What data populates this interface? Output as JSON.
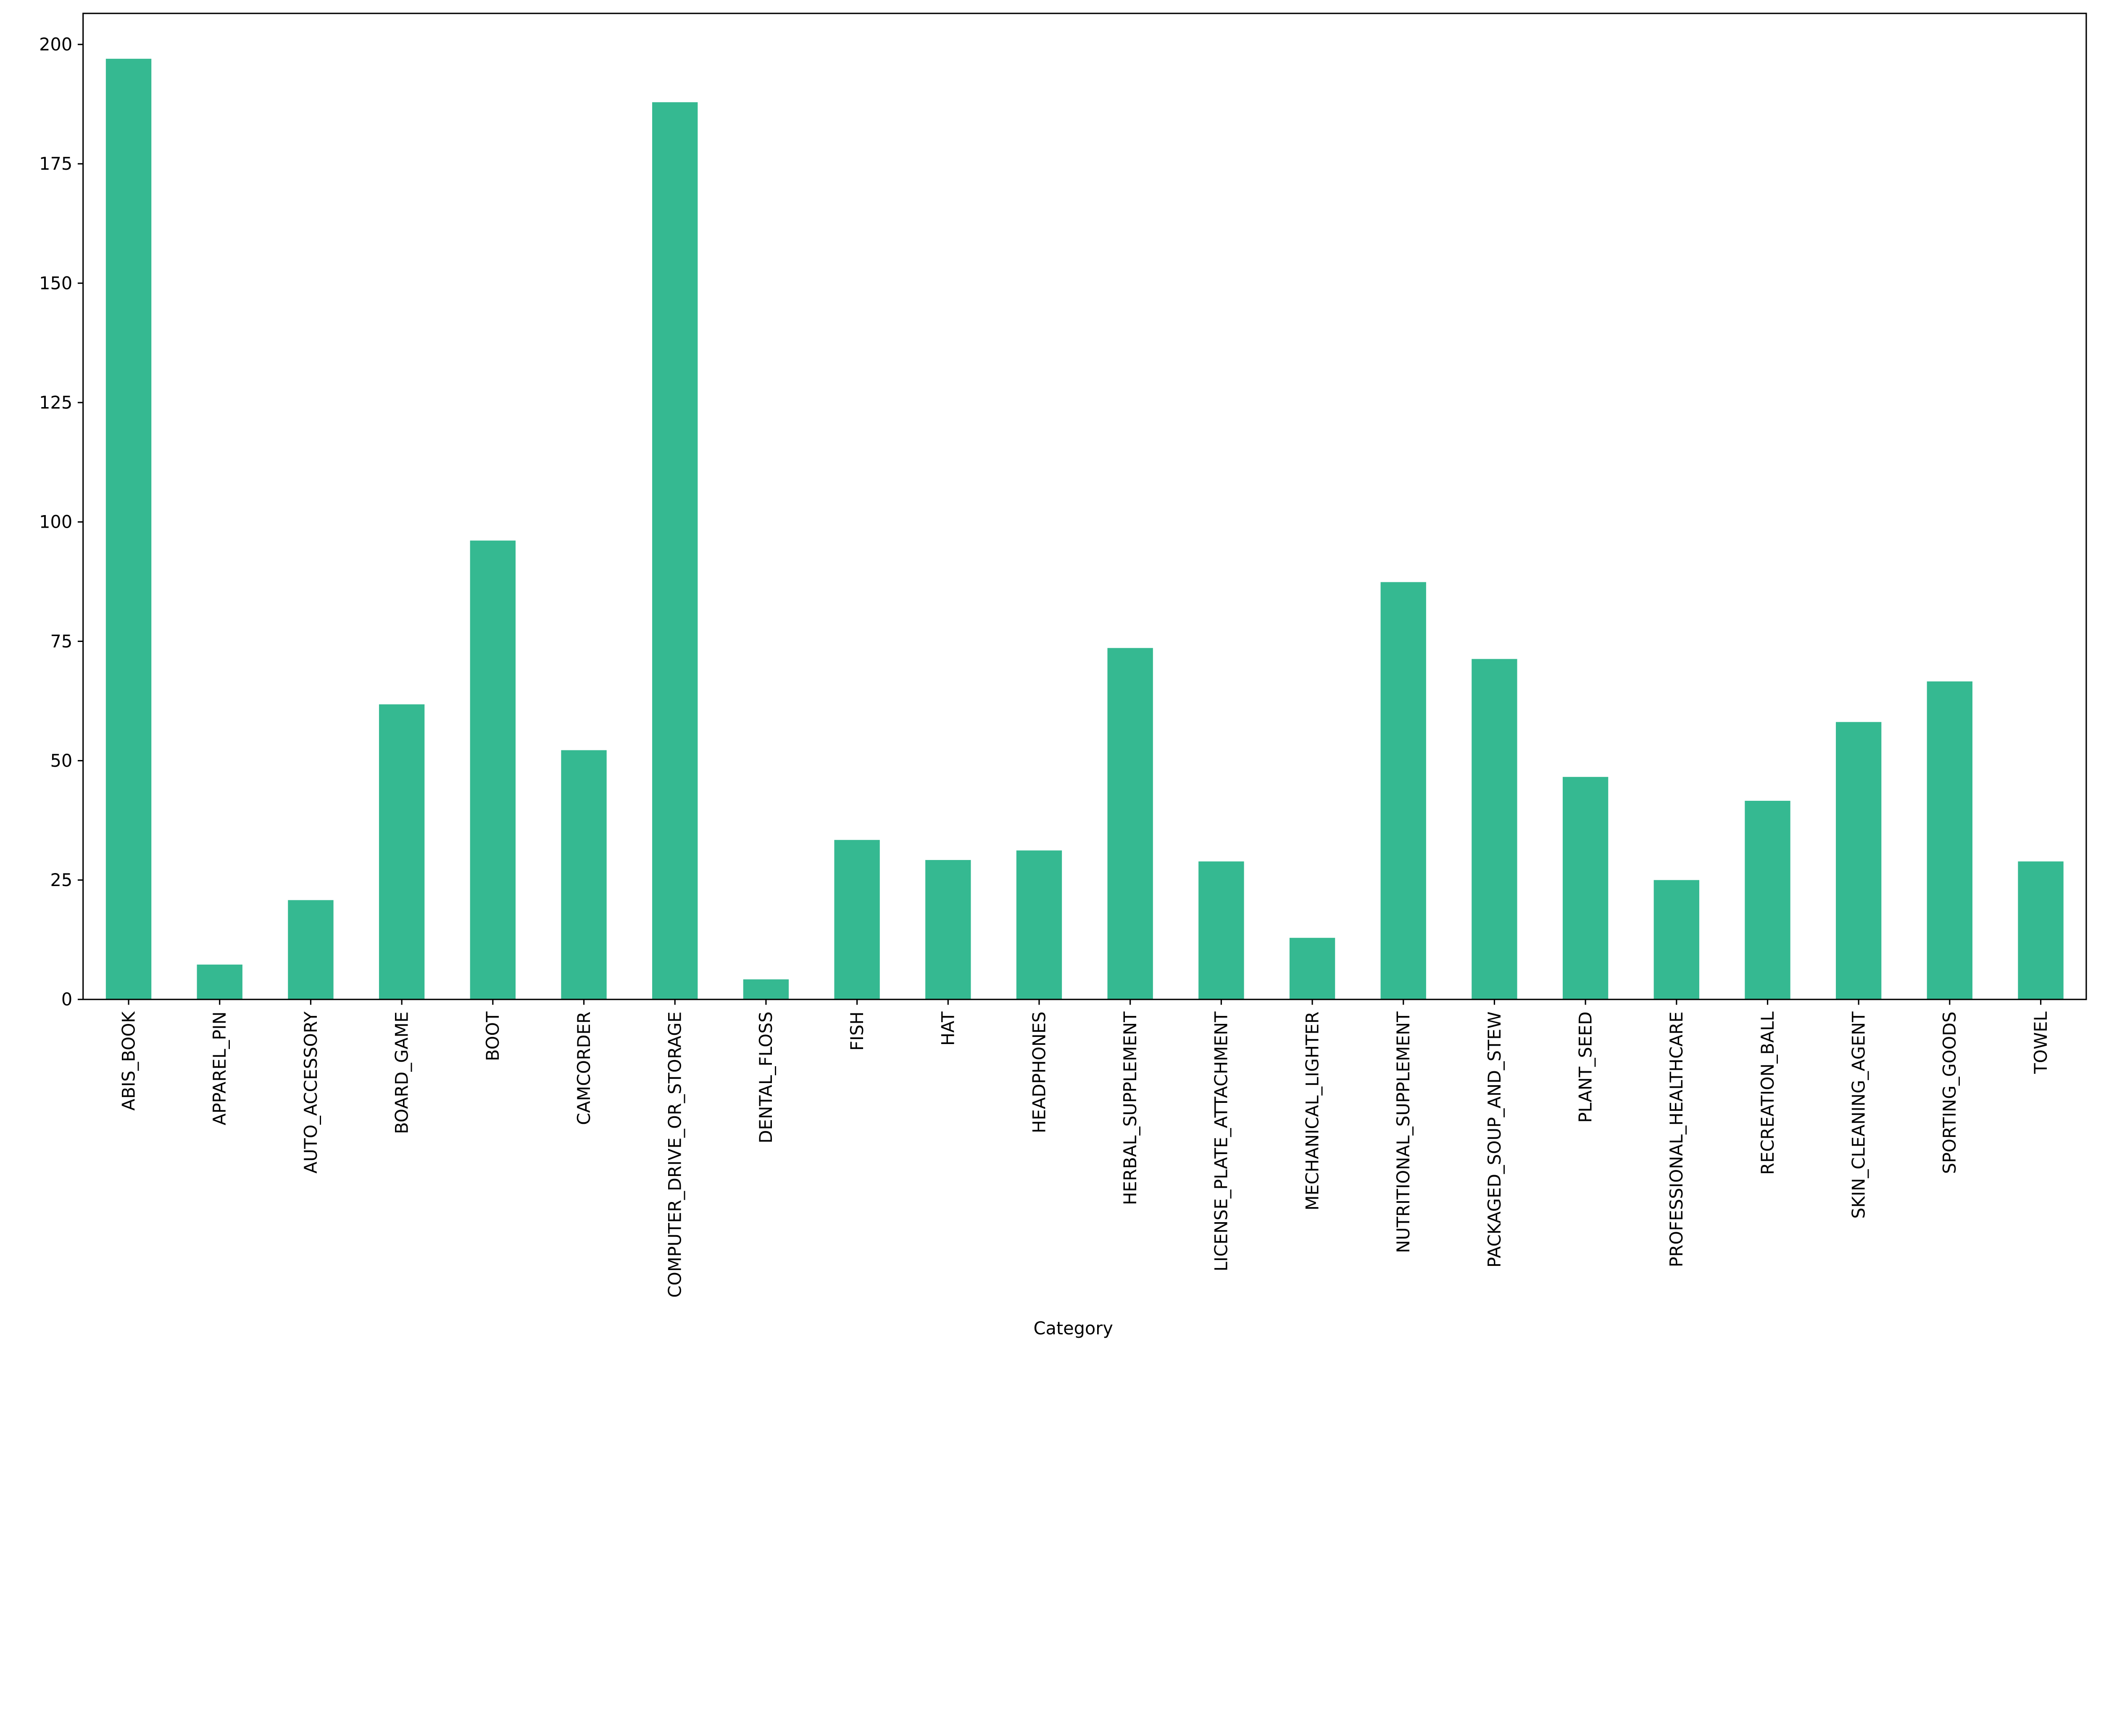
{
  "chart_data": {
    "type": "bar",
    "title": "",
    "xlabel": "Category",
    "ylabel": "",
    "ylim": [
      0,
      206.5
    ],
    "yticks": [
      0,
      25,
      50,
      75,
      100,
      125,
      150,
      175,
      200
    ],
    "grid": false,
    "bar_color": "#35b991",
    "categories": [
      "ABIS_BOOK",
      "APPAREL_PIN",
      "AUTO_ACCESSORY",
      "BOARD_GAME",
      "BOOT",
      "CAMCORDER",
      "COMPUTER_DRIVE_OR_STORAGE",
      "DENTAL_FLOSS",
      "FISH",
      "HAT",
      "HEADPHONES",
      "HERBAL_SUPPLEMENT",
      "LICENSE_PLATE_ATTACHMENT",
      "MECHANICAL_LIGHTER",
      "NUTRITIONAL_SUPPLEMENT",
      "PACKAGED_SOUP_AND_STEW",
      "PLANT_SEED",
      "PROFESSIONAL_HEALTHCARE",
      "RECREATION_BALL",
      "SKIN_CLEANING_AGENT",
      "SPORTING_GOODS",
      "TOWEL"
    ],
    "values": [
      197,
      7.3,
      20.8,
      61.8,
      96.1,
      52.2,
      187.9,
      4.2,
      33.4,
      29.2,
      31.2,
      73.6,
      28.9,
      12.9,
      87.4,
      71.3,
      46.6,
      25,
      41.6,
      58.1,
      66.6,
      28.9
    ]
  }
}
